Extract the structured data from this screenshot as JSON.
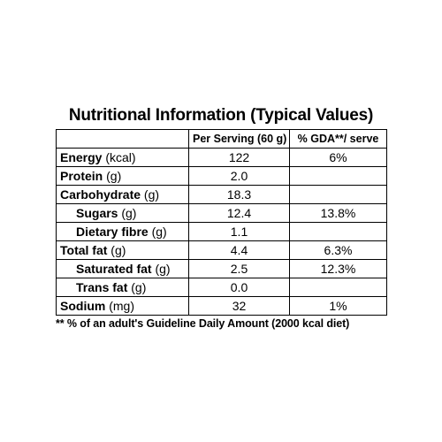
{
  "title": "Nutritional Information (Typical Values)",
  "headers": {
    "nutrient": "",
    "per_serving": "Per Serving (60 g)",
    "gda": "% GDA**/ serve"
  },
  "rows": [
    {
      "name": "Energy",
      "unit": " (kcal)",
      "value": "122",
      "gda": "6%"
    },
    {
      "name": "Protein",
      "unit": " (g)",
      "value": "2.0",
      "gda": ""
    },
    {
      "name": "Carbohydrate",
      "unit": " (g)",
      "value": "18.3",
      "gda": ""
    },
    {
      "name": "Sugars",
      "unit": " (g)",
      "value": "12.4",
      "gda": "13.8%"
    },
    {
      "name": "Dietary fibre",
      "unit": " (g)",
      "value": "1.1",
      "gda": ""
    },
    {
      "name": "Total fat",
      "unit": " (g)",
      "value": "4.4",
      "gda": "6.3%"
    },
    {
      "name": "Saturated fat",
      "unit": " (g)",
      "value": "2.5",
      "gda": "12.3%"
    },
    {
      "name": "Trans fat",
      "unit": " (g)",
      "value": "0.0",
      "gda": ""
    },
    {
      "name": "Sodium",
      "unit": " (mg)",
      "value": "32",
      "gda": "1%"
    }
  ],
  "footnote": "** % of an adult's Guideline Daily Amount (2000 kcal diet)"
}
